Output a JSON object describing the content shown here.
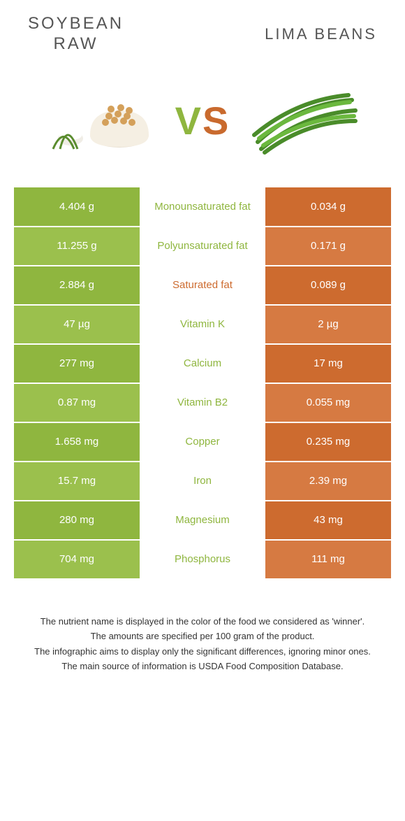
{
  "header": {
    "left_title": "SOYBEAN\nRAW",
    "right_title": "LIMA BEANS"
  },
  "vs": {
    "v": "V",
    "s": "S"
  },
  "colors": {
    "left_primary": "#8fb63f",
    "left_alt": "#9bc04d",
    "right_primary": "#cd6b2f",
    "right_alt": "#d67a42",
    "mid_green": "#8fb63f",
    "mid_orange": "#cd6b2f",
    "row_border": "#ffffff"
  },
  "rows": [
    {
      "left": "4.404 g",
      "mid": "Monounsaturated fat",
      "right": "0.034 g",
      "mid_color": "green",
      "shade": 0
    },
    {
      "left": "11.255 g",
      "mid": "Polyunsaturated fat",
      "right": "0.171 g",
      "mid_color": "green",
      "shade": 1
    },
    {
      "left": "2.884 g",
      "mid": "Saturated fat",
      "right": "0.089 g",
      "mid_color": "orange",
      "shade": 0
    },
    {
      "left": "47 µg",
      "mid": "Vitamin K",
      "right": "2 µg",
      "mid_color": "green",
      "shade": 1
    },
    {
      "left": "277 mg",
      "mid": "Calcium",
      "right": "17 mg",
      "mid_color": "green",
      "shade": 0
    },
    {
      "left": "0.87 mg",
      "mid": "Vitamin B2",
      "right": "0.055 mg",
      "mid_color": "green",
      "shade": 1
    },
    {
      "left": "1.658 mg",
      "mid": "Copper",
      "right": "0.235 mg",
      "mid_color": "green",
      "shade": 0
    },
    {
      "left": "15.7 mg",
      "mid": "Iron",
      "right": "2.39 mg",
      "mid_color": "green",
      "shade": 1
    },
    {
      "left": "280 mg",
      "mid": "Magnesium",
      "right": "43 mg",
      "mid_color": "green",
      "shade": 0
    },
    {
      "left": "704 mg",
      "mid": "Phosphorus",
      "right": "111 mg",
      "mid_color": "green",
      "shade": 1
    }
  ],
  "footer": {
    "line1": "The nutrient name is displayed in the color of the food we considered as 'winner'.",
    "line2": "The amounts are specified per 100 gram of the product.",
    "line3": "The infographic aims to display only the significant differences, ignoring minor ones.",
    "line4": "The main source of information is USDA Food Composition Database."
  }
}
